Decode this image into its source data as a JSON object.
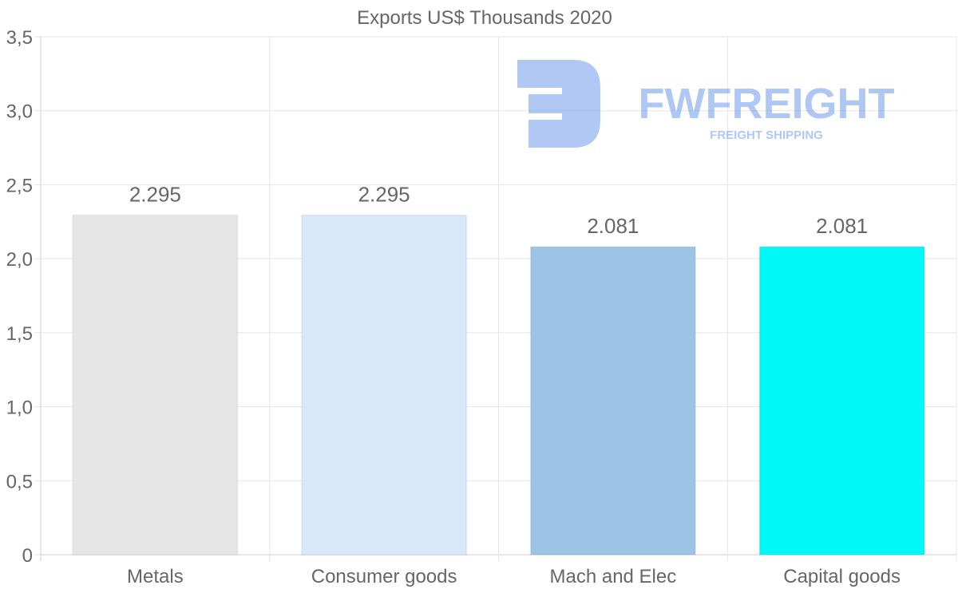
{
  "chart_data": {
    "type": "bar",
    "title": "Exports US$ Thousands 2020",
    "categories": [
      "Metals",
      "Consumer goods",
      "Mach and Elec",
      "Capital goods"
    ],
    "values": [
      2.295,
      2.295,
      2.081,
      2.081
    ],
    "value_labels": [
      "2.295",
      "2.295",
      "2.081",
      "2.081"
    ],
    "bar_colors": [
      "#e6e6e6",
      "#d8e8f9",
      "#9dc3e6",
      "#00f8f8"
    ],
    "ylim": [
      0,
      3.5
    ],
    "yticks": [
      0,
      0.5,
      1.0,
      1.5,
      2.0,
      2.5,
      3.0,
      3.5
    ],
    "ytick_labels": [
      "0",
      "0,5",
      "1,0",
      "1,5",
      "2,0",
      "2,5",
      "3,0",
      "3,5"
    ],
    "xlabel": "",
    "ylabel": "",
    "grid": true,
    "legend": "none"
  },
  "watermark": {
    "brand": "FWFREIGHT",
    "tagline": "FREIGHT SHIPPING",
    "color": "#6f9aea"
  },
  "colors": {
    "text": "#666666",
    "grid": "#e5e5e5",
    "axis": "#cfcfcf"
  }
}
